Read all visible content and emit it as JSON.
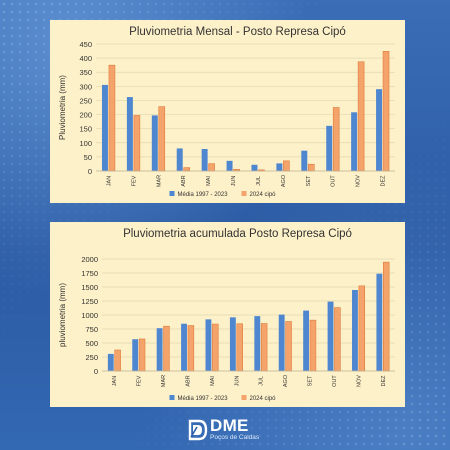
{
  "chart_data": [
    {
      "type": "bar",
      "title": "Pluviometria Mensal - Posto Represa Cipó",
      "xlabel": "",
      "ylabel": "Pluviometria (mm)",
      "ylim": [
        0,
        450
      ],
      "yticks": [
        0,
        50,
        100,
        150,
        200,
        250,
        300,
        350,
        400,
        450
      ],
      "categories": [
        "JAN",
        "FEV",
        "MAR",
        "ABR",
        "MAI",
        "JUN",
        "JUL",
        "AGO",
        "SET",
        "OUT",
        "NOV",
        "DEZ"
      ],
      "series": [
        {
          "name": "Média 1997 - 2023",
          "color": "#4f86d0",
          "values": [
            305,
            262,
            197,
            80,
            78,
            36,
            22,
            27,
            72,
            160,
            208,
            290
          ]
        },
        {
          "name": "2024 cipó",
          "color": "#f4a46a",
          "values": [
            375,
            197,
            228,
            12,
            26,
            6,
            4,
            36,
            24,
            225,
            387,
            424
          ]
        }
      ],
      "grid": true,
      "legend": "bottom"
    },
    {
      "type": "bar",
      "title": "Pluviometria acumulada Posto Represa Cipó",
      "xlabel": "",
      "ylabel": "pluviometria (mm)",
      "ylim": [
        0,
        2000
      ],
      "yticks": [
        0,
        250,
        500,
        750,
        1000,
        1250,
        1500,
        1750,
        2000
      ],
      "categories": [
        "JAN",
        "FEV",
        "MAR",
        "ABR",
        "MAI",
        "JUN",
        "JUL",
        "AGO",
        "SET",
        "OUT",
        "NOV",
        "DEZ"
      ],
      "series": [
        {
          "name": "Média 1997 - 2023",
          "color": "#4f86d0",
          "values": [
            305,
            567,
            764,
            844,
            922,
            958,
            980,
            1007,
            1079,
            1239,
            1447,
            1737
          ]
        },
        {
          "name": "2024 cipó",
          "color": "#f4a46a",
          "values": [
            375,
            572,
            800,
            812,
            838,
            844,
            848,
            884,
            908,
            1133,
            1520,
            1944
          ]
        }
      ],
      "grid": true,
      "legend": "bottom"
    }
  ],
  "logo": {
    "name": "DME",
    "subtitle": "Poços de Caldas",
    "color": "#ffffff"
  }
}
